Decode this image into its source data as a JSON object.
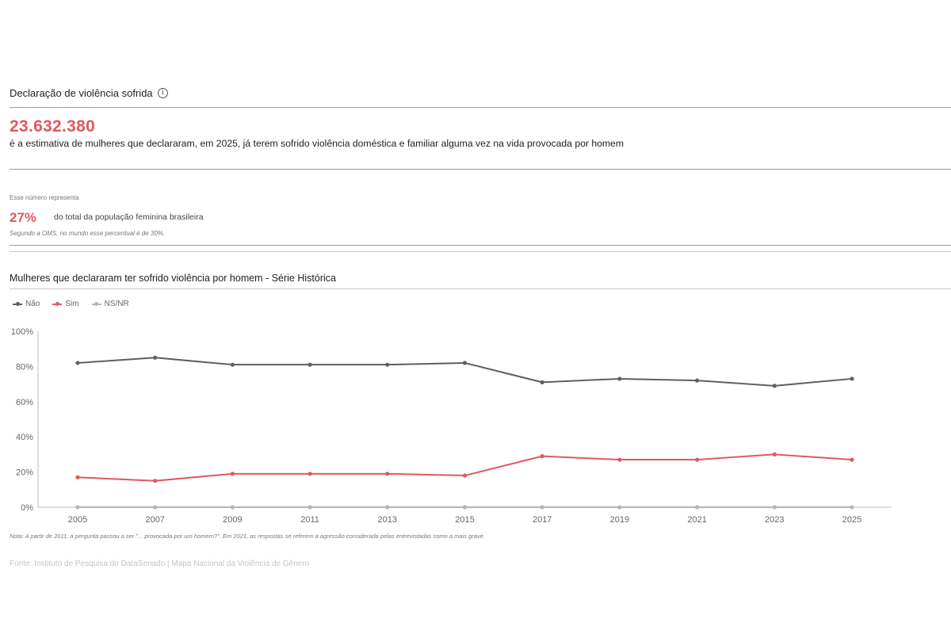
{
  "header": {
    "section_title": "Declaração de violência sofrida",
    "info_icon": "info-circle-icon"
  },
  "estimate": {
    "number": "23.632.380",
    "description": "é a estimativa de mulheres que declararam, em 2025, já terem sofrido violência doméstica e familiar alguma vez na vida provocada por homem"
  },
  "share": {
    "label": "Esse número representa",
    "percent": "27%",
    "percent_desc": "do total da população feminina brasileira",
    "note": "Segundo a OMS, no mundo esse percentual é de 30%."
  },
  "colors": {
    "accent": "#dd5a5f",
    "nao": "#5f5f5f",
    "sim": "#dd5a5f",
    "nsnr": "#b5b5b5"
  },
  "chart_data": {
    "type": "line",
    "title": "Mulheres que declararam ter sofrido violência por homem - Série Histórica",
    "x": [
      "2005",
      "2007",
      "2009",
      "2011",
      "2013",
      "2015",
      "2017",
      "2019",
      "2021",
      "2023",
      "2025"
    ],
    "y_ticks": [
      "0%",
      "20%",
      "40%",
      "60%",
      "80%",
      "100%"
    ],
    "ylim": [
      0,
      100
    ],
    "legend_position": "top-left",
    "grid": false,
    "series": [
      {
        "name": "Não",
        "color": "#5f5f5f",
        "values": [
          82,
          85,
          81,
          81,
          81,
          82,
          71,
          73,
          72,
          69,
          73
        ]
      },
      {
        "name": "Sim",
        "color": "#dd5a5f",
        "values": [
          17,
          15,
          19,
          19,
          19,
          18,
          29,
          27,
          27,
          30,
          27
        ]
      },
      {
        "name": "NS/NR",
        "color": "#b5b5b5",
        "values": [
          0,
          0,
          0,
          0,
          0,
          0,
          0,
          0,
          0,
          0,
          0
        ]
      }
    ]
  },
  "footnote": "Nota: A partir de 2011, a pergunta passou a ser \"... provocada por um homem?\". Em 2021, as respostas se referem à agressão considerada pelas entrevistadas como a mais grave.",
  "source": "Fonte: Instituto de Pesquisa do DataSenado | Mapa Nacional da Violência de Gênero"
}
